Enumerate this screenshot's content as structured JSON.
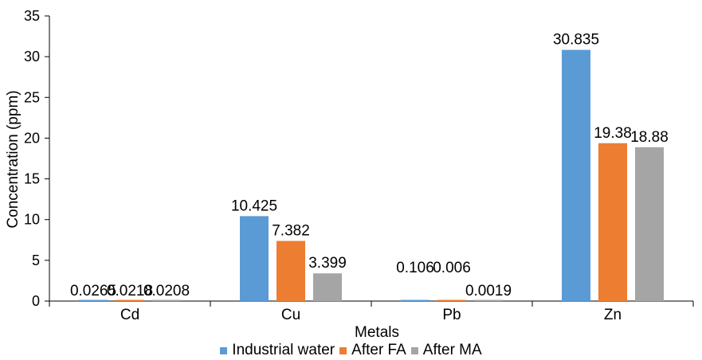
{
  "chart_data": {
    "type": "bar",
    "categories": [
      "Cd",
      "Cu",
      "Pb",
      "Zn"
    ],
    "series": [
      {
        "name": "Industrial water",
        "color": "#5b9bd5",
        "values": [
          0.0265,
          10.425,
          0.106,
          30.835
        ]
      },
      {
        "name": "After FA",
        "color": "#ed7d31",
        "values": [
          0.0218,
          7.382,
          0.006,
          19.38
        ]
      },
      {
        "name": "After MA",
        "color": "#a5a5a5",
        "values": [
          0.0208,
          3.399,
          0.0019,
          18.88
        ]
      }
    ],
    "data_labels": [
      [
        "0.0265",
        "10.425",
        "0.106",
        "30.835"
      ],
      [
        "0.0218",
        "7.382",
        "0.006",
        "19.38"
      ],
      [
        "0.0208",
        "3.399",
        "0.0019",
        "18.88"
      ]
    ],
    "yticks": [
      "0",
      "5",
      "10",
      "15",
      "20",
      "25",
      "30",
      "35"
    ],
    "ylim": [
      0,
      35
    ],
    "xlabel": "Metals",
    "ylabel": "Concentration (ppm)",
    "grid": false,
    "legend_position": "bottom"
  }
}
